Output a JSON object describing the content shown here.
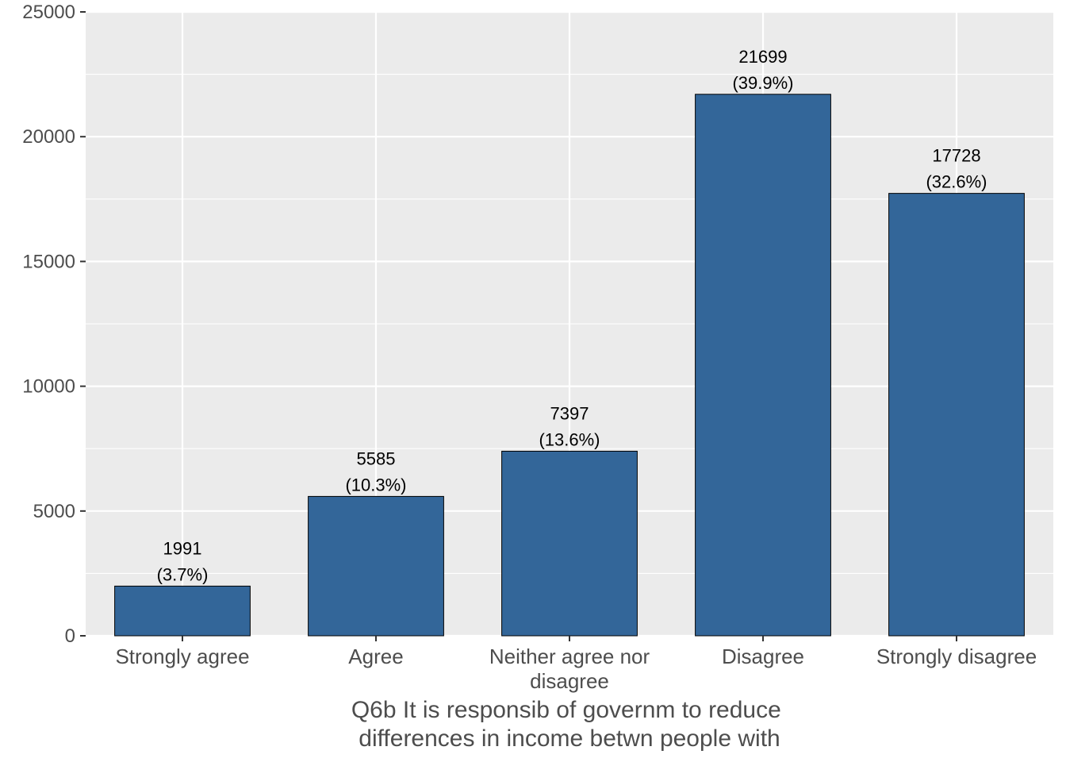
{
  "chart_data": {
    "type": "bar",
    "categories": [
      [
        "Strongly agree"
      ],
      [
        "Agree"
      ],
      [
        "Neither agree nor",
        "disagree"
      ],
      [
        "Disagree"
      ],
      [
        "Strongly disagree"
      ]
    ],
    "values": [
      1991,
      5585,
      7397,
      21699,
      17728
    ],
    "value_labels": [
      "1991",
      "5585",
      "7397",
      "21699",
      "17728"
    ],
    "percent_labels": [
      "(3.7%)",
      "(10.3%)",
      "(13.6%)",
      "(39.9%)",
      "(32.6%)"
    ],
    "xlabel": [
      "Q6b It is responsib of governm to reduce",
      "differences in income betwn people with"
    ],
    "ylabel": "",
    "ylim": [
      0,
      25000
    ],
    "yticks": [
      0,
      5000,
      10000,
      15000,
      20000,
      25000
    ],
    "grid": true,
    "colors": {
      "bar": "#336699",
      "bar_outline": "#000000",
      "panel_background": "#ebebeb",
      "gridline": "#ffffff",
      "text": "#4d4d4d"
    }
  }
}
